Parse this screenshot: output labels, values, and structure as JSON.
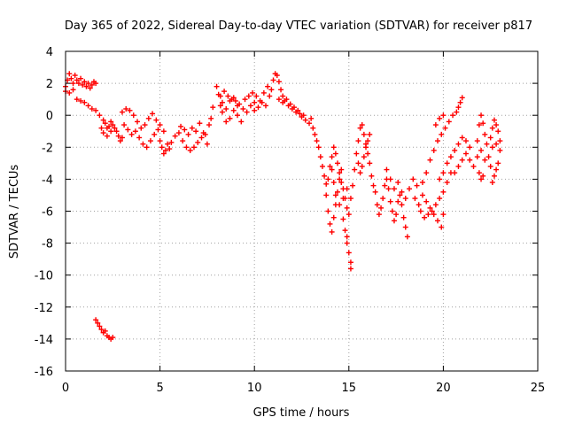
{
  "chart_data": {
    "type": "scatter",
    "title": "Day 365 of 2022, Sidereal Day-to-day VTEC variation (SDTVAR) for receiver p817",
    "xlabel": "GPS time / hours",
    "ylabel": "SDTVAR / TECUs",
    "xlim": [
      0,
      25
    ],
    "ylim": [
      -16,
      4
    ],
    "xticks": [
      "0",
      "5",
      "10",
      "15",
      "20",
      "25"
    ],
    "yticks": [
      "4",
      "2",
      "0",
      "-2",
      "-4",
      "-6",
      "-8",
      "-10",
      "-12",
      "-14",
      "-16"
    ],
    "grid": true,
    "marker": "plus",
    "color": "#ff0000",
    "series": [
      {
        "name": "SDTVAR",
        "points": [
          [
            0.0,
            1.8
          ],
          [
            0.1,
            2.2
          ],
          [
            0.2,
            2.6
          ],
          [
            0.3,
            2.3
          ],
          [
            0.4,
            2.0
          ],
          [
            0.5,
            2.5
          ],
          [
            0.6,
            2.2
          ],
          [
            0.7,
            2.0
          ],
          [
            0.8,
            2.3
          ],
          [
            0.9,
            1.9
          ],
          [
            1.0,
            2.1
          ],
          [
            1.1,
            1.8
          ],
          [
            1.2,
            2.0
          ],
          [
            1.3,
            1.7
          ],
          [
            1.4,
            1.9
          ],
          [
            1.5,
            2.1
          ],
          [
            1.6,
            2.0
          ],
          [
            0.0,
            1.5
          ],
          [
            0.2,
            1.4
          ],
          [
            0.4,
            1.6
          ],
          [
            0.6,
            1.0
          ],
          [
            0.8,
            0.9
          ],
          [
            1.0,
            0.8
          ],
          [
            1.2,
            0.6
          ],
          [
            1.4,
            0.4
          ],
          [
            1.6,
            0.3
          ],
          [
            1.8,
            0.0
          ],
          [
            2.0,
            -0.3
          ],
          [
            2.1,
            -0.5
          ],
          [
            2.2,
            -0.8
          ],
          [
            2.3,
            -0.7
          ],
          [
            2.4,
            -0.4
          ],
          [
            2.5,
            -0.6
          ],
          [
            2.6,
            -0.8
          ],
          [
            2.7,
            -1.0
          ],
          [
            2.8,
            -1.3
          ],
          [
            2.9,
            -1.6
          ],
          [
            3.0,
            -1.4
          ],
          [
            1.9,
            -0.8
          ],
          [
            2.0,
            -1.1
          ],
          [
            2.2,
            -1.3
          ],
          [
            2.4,
            -1.0
          ],
          [
            3.0,
            0.2
          ],
          [
            3.2,
            0.4
          ],
          [
            3.4,
            0.3
          ],
          [
            3.6,
            0.0
          ],
          [
            3.8,
            -0.4
          ],
          [
            4.0,
            -0.8
          ],
          [
            4.2,
            -0.6
          ],
          [
            4.4,
            -0.2
          ],
          [
            4.6,
            0.1
          ],
          [
            4.8,
            -0.3
          ],
          [
            3.1,
            -0.6
          ],
          [
            3.3,
            -0.9
          ],
          [
            3.5,
            -1.2
          ],
          [
            3.7,
            -1.0
          ],
          [
            3.9,
            -1.4
          ],
          [
            4.1,
            -1.8
          ],
          [
            4.3,
            -2.0
          ],
          [
            4.5,
            -1.6
          ],
          [
            4.7,
            -1.2
          ],
          [
            4.9,
            -0.9
          ],
          [
            5.0,
            -1.6
          ],
          [
            5.1,
            -2.0
          ],
          [
            5.2,
            -2.4
          ],
          [
            5.3,
            -2.2
          ],
          [
            5.4,
            -1.8
          ],
          [
            5.5,
            -2.1
          ],
          [
            5.6,
            -1.7
          ],
          [
            5.0,
            -0.6
          ],
          [
            5.2,
            -1.0
          ],
          [
            5.8,
            -1.3
          ],
          [
            6.0,
            -1.1
          ],
          [
            6.2,
            -1.6
          ],
          [
            6.4,
            -2.0
          ],
          [
            6.6,
            -2.2
          ],
          [
            6.8,
            -2.0
          ],
          [
            7.0,
            -1.7
          ],
          [
            7.2,
            -1.4
          ],
          [
            7.4,
            -1.2
          ],
          [
            6.1,
            -0.7
          ],
          [
            6.3,
            -0.9
          ],
          [
            6.5,
            -1.2
          ],
          [
            6.7,
            -0.8
          ],
          [
            6.9,
            -1.0
          ],
          [
            7.1,
            -0.5
          ],
          [
            7.3,
            -1.1
          ],
          [
            7.5,
            -1.8
          ],
          [
            7.6,
            -0.6
          ],
          [
            7.7,
            -0.2
          ],
          [
            7.8,
            0.5
          ],
          [
            8.0,
            1.8
          ],
          [
            8.1,
            1.3
          ],
          [
            8.2,
            0.6
          ],
          [
            8.3,
            0.2
          ],
          [
            8.5,
            -0.4
          ],
          [
            8.7,
            -0.2
          ],
          [
            8.9,
            0.3
          ],
          [
            9.1,
            0.0
          ],
          [
            9.3,
            -0.4
          ],
          [
            8.2,
            1.2
          ],
          [
            8.4,
            1.5
          ],
          [
            8.6,
            1.2
          ],
          [
            8.8,
            1.0
          ],
          [
            9.0,
            0.9
          ],
          [
            9.2,
            0.7
          ],
          [
            9.4,
            0.4
          ],
          [
            9.6,
            0.2
          ],
          [
            9.8,
            0.6
          ],
          [
            10.0,
            0.8
          ],
          [
            8.3,
            0.8
          ],
          [
            8.5,
            0.4
          ],
          [
            8.7,
            0.9
          ],
          [
            8.9,
            1.1
          ],
          [
            9.1,
            0.6
          ],
          [
            9.5,
            1.0
          ],
          [
            9.7,
            1.2
          ],
          [
            9.9,
            1.4
          ],
          [
            10.1,
            1.2
          ],
          [
            10.3,
            0.9
          ],
          [
            10.0,
            0.3
          ],
          [
            10.2,
            0.5
          ],
          [
            10.4,
            0.8
          ],
          [
            10.6,
            0.6
          ],
          [
            10.8,
            1.2
          ],
          [
            11.0,
            2.2
          ],
          [
            11.1,
            2.6
          ],
          [
            11.2,
            2.5
          ],
          [
            11.3,
            2.1
          ],
          [
            11.4,
            1.6
          ],
          [
            10.5,
            1.4
          ],
          [
            10.7,
            1.8
          ],
          [
            10.9,
            1.6
          ],
          [
            11.5,
            1.2
          ],
          [
            11.6,
            0.9
          ],
          [
            11.8,
            0.6
          ],
          [
            12.0,
            0.4
          ],
          [
            12.2,
            0.2
          ],
          [
            12.4,
            0.1
          ],
          [
            12.6,
            0.0
          ],
          [
            11.3,
            1.0
          ],
          [
            11.5,
            0.8
          ],
          [
            11.7,
            1.0
          ],
          [
            11.9,
            0.7
          ],
          [
            12.1,
            0.5
          ],
          [
            12.3,
            0.3
          ],
          [
            12.5,
            -0.1
          ],
          [
            12.7,
            -0.3
          ],
          [
            12.9,
            -0.5
          ],
          [
            13.0,
            -0.2
          ],
          [
            13.1,
            -0.8
          ],
          [
            13.2,
            -1.2
          ],
          [
            13.3,
            -1.6
          ],
          [
            13.4,
            -2.0
          ],
          [
            13.5,
            -2.6
          ],
          [
            13.6,
            -3.2
          ],
          [
            13.7,
            -3.8
          ],
          [
            13.8,
            -4.3
          ],
          [
            13.9,
            -4.0
          ],
          [
            14.0,
            -3.2
          ],
          [
            14.1,
            -2.6
          ],
          [
            14.2,
            -2.0
          ],
          [
            14.3,
            -2.4
          ],
          [
            14.4,
            -3.0
          ],
          [
            14.5,
            -3.6
          ],
          [
            14.6,
            -4.2
          ],
          [
            14.7,
            -4.6
          ],
          [
            14.8,
            -5.2
          ],
          [
            14.9,
            -5.8
          ],
          [
            15.0,
            -6.2
          ],
          [
            13.8,
            -5.0
          ],
          [
            13.9,
            -6.0
          ],
          [
            14.0,
            -6.8
          ],
          [
            14.1,
            -7.3
          ],
          [
            14.2,
            -6.4
          ],
          [
            14.3,
            -5.6
          ],
          [
            14.4,
            -4.8
          ],
          [
            14.5,
            -4.0
          ],
          [
            14.6,
            -3.4
          ],
          [
            14.7,
            -6.5
          ],
          [
            14.8,
            -7.2
          ],
          [
            14.9,
            -8.0
          ],
          [
            15.0,
            -8.6
          ],
          [
            15.1,
            -9.2
          ],
          [
            15.1,
            -9.6
          ],
          [
            14.9,
            -7.6
          ],
          [
            14.1,
            -3.4
          ],
          [
            14.2,
            -4.2
          ],
          [
            14.3,
            -5.0
          ],
          [
            14.5,
            -5.6
          ],
          [
            14.7,
            -5.2
          ],
          [
            14.9,
            -4.6
          ],
          [
            15.1,
            -5.2
          ],
          [
            15.2,
            -4.4
          ],
          [
            15.3,
            -3.4
          ],
          [
            15.4,
            -2.4
          ],
          [
            15.5,
            -1.6
          ],
          [
            15.6,
            -0.8
          ],
          [
            15.7,
            -0.6
          ],
          [
            15.8,
            -1.2
          ],
          [
            15.9,
            -1.8
          ],
          [
            16.0,
            -1.6
          ],
          [
            16.1,
            -1.2
          ],
          [
            15.5,
            -3.0
          ],
          [
            15.6,
            -3.6
          ],
          [
            15.7,
            -3.2
          ],
          [
            15.8,
            -2.6
          ],
          [
            15.9,
            -2.0
          ],
          [
            16.0,
            -2.4
          ],
          [
            16.1,
            -3.0
          ],
          [
            16.2,
            -3.8
          ],
          [
            16.3,
            -4.4
          ],
          [
            16.4,
            -4.8
          ],
          [
            16.5,
            -5.6
          ],
          [
            16.6,
            -6.2
          ],
          [
            16.7,
            -5.8
          ],
          [
            16.8,
            -5.2
          ],
          [
            16.9,
            -4.4
          ],
          [
            17.0,
            -4.0
          ],
          [
            17.1,
            -4.6
          ],
          [
            17.2,
            -5.4
          ],
          [
            17.3,
            -6.0
          ],
          [
            17.4,
            -6.6
          ],
          [
            17.5,
            -6.2
          ],
          [
            17.6,
            -5.4
          ],
          [
            17.7,
            -5.0
          ],
          [
            17.8,
            -5.6
          ],
          [
            17.9,
            -6.4
          ],
          [
            18.0,
            -7.0
          ],
          [
            18.1,
            -7.6
          ],
          [
            17.0,
            -3.4
          ],
          [
            17.2,
            -4.0
          ],
          [
            17.4,
            -4.6
          ],
          [
            17.6,
            -4.2
          ],
          [
            17.8,
            -4.8
          ],
          [
            18.0,
            -5.2
          ],
          [
            18.2,
            -4.6
          ],
          [
            18.4,
            -4.0
          ],
          [
            18.6,
            -4.4
          ],
          [
            18.5,
            -5.2
          ],
          [
            18.7,
            -5.6
          ],
          [
            18.9,
            -5.0
          ],
          [
            19.1,
            -5.4
          ],
          [
            19.3,
            -5.8
          ],
          [
            19.5,
            -6.2
          ],
          [
            19.7,
            -6.6
          ],
          [
            19.9,
            -7.0
          ],
          [
            20.0,
            -6.2
          ],
          [
            18.8,
            -6.0
          ],
          [
            19.0,
            -6.4
          ],
          [
            19.2,
            -6.2
          ],
          [
            19.4,
            -6.0
          ],
          [
            19.6,
            -5.6
          ],
          [
            19.8,
            -5.2
          ],
          [
            20.0,
            -4.8
          ],
          [
            20.2,
            -4.2
          ],
          [
            20.4,
            -3.6
          ],
          [
            18.9,
            -4.2
          ],
          [
            19.1,
            -3.6
          ],
          [
            19.3,
            -2.8
          ],
          [
            19.5,
            -2.2
          ],
          [
            19.7,
            -1.6
          ],
          [
            19.9,
            -1.2
          ],
          [
            20.1,
            -0.8
          ],
          [
            20.3,
            -0.4
          ],
          [
            20.5,
            0.0
          ],
          [
            20.7,
            0.2
          ],
          [
            20.8,
            0.5
          ],
          [
            20.9,
            0.8
          ],
          [
            21.0,
            1.1
          ],
          [
            19.6,
            -0.6
          ],
          [
            19.8,
            -0.2
          ],
          [
            20.0,
            0.0
          ],
          [
            19.8,
            -4.0
          ],
          [
            20.0,
            -3.6
          ],
          [
            20.2,
            -3.0
          ],
          [
            20.4,
            -2.6
          ],
          [
            20.6,
            -2.2
          ],
          [
            20.8,
            -1.8
          ],
          [
            21.0,
            -1.4
          ],
          [
            21.2,
            -1.6
          ],
          [
            21.4,
            -2.0
          ],
          [
            20.6,
            -3.6
          ],
          [
            20.8,
            -3.2
          ],
          [
            21.0,
            -2.8
          ],
          [
            21.2,
            -2.4
          ],
          [
            21.4,
            -2.8
          ],
          [
            21.6,
            -3.2
          ],
          [
            21.8,
            -2.6
          ],
          [
            22.0,
            -2.2
          ],
          [
            22.2,
            -2.8
          ],
          [
            21.8,
            -1.6
          ],
          [
            21.9,
            -0.6
          ],
          [
            22.0,
            0.0
          ],
          [
            22.1,
            -0.5
          ],
          [
            22.2,
            -1.2
          ],
          [
            22.3,
            -1.8
          ],
          [
            22.4,
            -2.6
          ],
          [
            22.5,
            -3.2
          ],
          [
            21.9,
            -3.6
          ],
          [
            22.0,
            -4.0
          ],
          [
            22.1,
            -3.8
          ],
          [
            22.6,
            -4.2
          ],
          [
            22.7,
            -3.8
          ],
          [
            22.8,
            -3.4
          ],
          [
            22.9,
            -3.0
          ],
          [
            22.5,
            -1.4
          ],
          [
            22.6,
            -0.8
          ],
          [
            22.7,
            -0.3
          ],
          [
            22.8,
            -0.6
          ],
          [
            22.9,
            -1.0
          ],
          [
            23.0,
            -1.6
          ],
          [
            22.6,
            -2.0
          ],
          [
            22.8,
            -1.8
          ],
          [
            23.0,
            -2.2
          ],
          [
            1.6,
            -12.8
          ],
          [
            1.7,
            -13.0
          ],
          [
            1.8,
            -13.2
          ],
          [
            1.9,
            -13.4
          ],
          [
            2.0,
            -13.6
          ],
          [
            2.1,
            -13.5
          ],
          [
            2.2,
            -13.8
          ],
          [
            2.3,
            -13.9
          ],
          [
            2.4,
            -14.0
          ],
          [
            2.5,
            -13.9
          ]
        ]
      }
    ]
  }
}
